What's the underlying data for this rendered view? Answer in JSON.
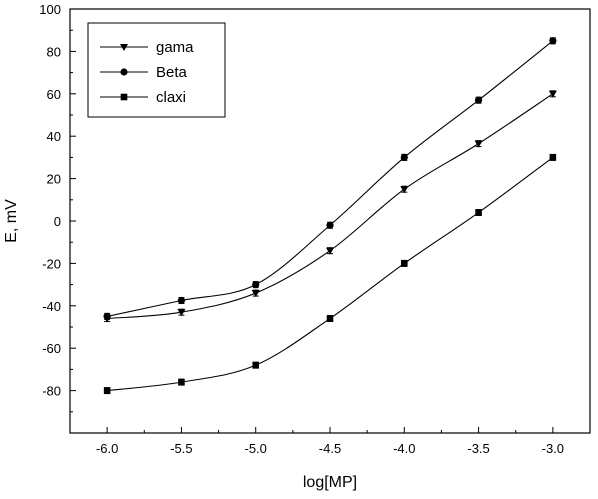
{
  "chart_data": {
    "type": "line",
    "title": "",
    "xlabel": "log[MP]",
    "ylabel": "E, mV",
    "xlim": [
      -6.25,
      -2.75
    ],
    "ylim": [
      -100,
      100
    ],
    "xticks": [
      -6.0,
      -5.5,
      -5.0,
      -4.5,
      -4.0,
      -3.5,
      -3.0
    ],
    "xtick_labels": [
      "-6.0",
      "-5.5",
      "-5.0",
      "-4.5",
      "-4.0",
      "-3.5",
      "-3.0"
    ],
    "yticks": [
      -80,
      -60,
      -40,
      -20,
      0,
      20,
      40,
      60,
      80,
      100
    ],
    "ytick_labels": [
      "-80",
      "-60",
      "-40",
      "-20",
      "0",
      "20",
      "40",
      "60",
      "80",
      "100"
    ],
    "grid": false,
    "legend_position": "top-left",
    "x": [
      -6.0,
      -5.5,
      -5.0,
      -4.5,
      -4.0,
      -3.5,
      -3.0
    ],
    "series": [
      {
        "name": "gama",
        "marker": "triangle-down",
        "values": [
          -46,
          -43,
          -34,
          -14,
          15,
          36.5,
          60
        ]
      },
      {
        "name": "Beta",
        "marker": "circle",
        "values": [
          -45,
          -37.5,
          -30,
          -2,
          30,
          57,
          85
        ]
      },
      {
        "name": "claxi",
        "marker": "square",
        "values": [
          -80,
          -76,
          -68,
          -46,
          -20,
          4,
          30
        ]
      }
    ]
  }
}
